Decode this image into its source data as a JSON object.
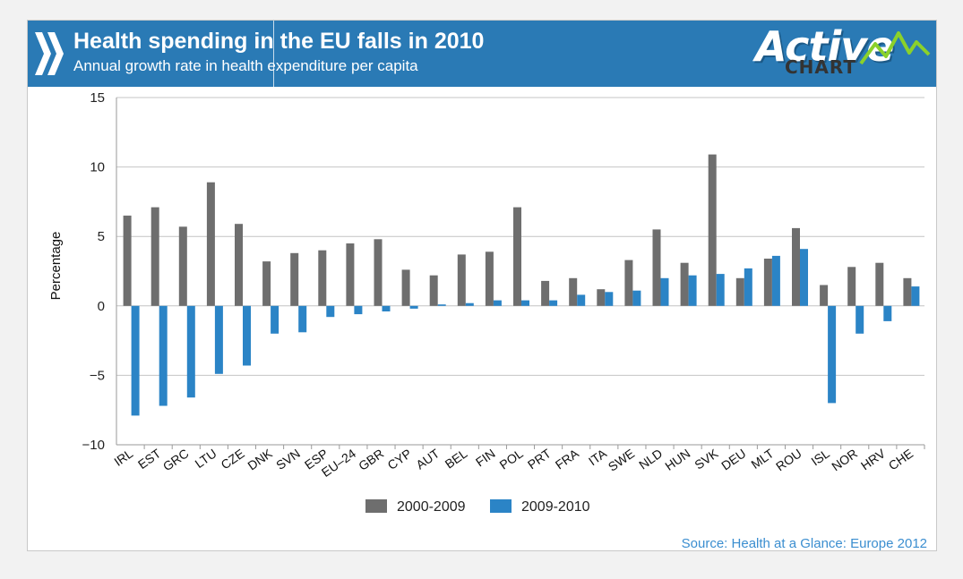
{
  "header": {
    "title": "Health spending in the EU falls in 2010",
    "subtitle": "Annual growth rate in health expenditure per capita",
    "logo_main": "Active",
    "logo_sub": "CHART"
  },
  "colors": {
    "header_bg": "#2a7ab5",
    "series_2000_2009": "#6e6e6e",
    "series_2009_2010": "#2b84c6",
    "source_text": "#3b8ed0"
  },
  "source": "Source: Health at a Glance: Europe 2012",
  "chart_data": {
    "type": "bar",
    "title": "Health spending in the EU falls in 2010",
    "subtitle": "Annual growth rate in health expenditure per capita",
    "ylabel": "Percentage",
    "xlabel": "",
    "ylim": [
      -10,
      15
    ],
    "yticks": [
      15,
      10,
      5,
      0,
      -5,
      -10
    ],
    "ytick_labels": [
      "15",
      "10",
      "5",
      "0",
      "−5",
      "−10"
    ],
    "grid": true,
    "legend_position": "bottom-center",
    "categories": [
      "IRL",
      "EST",
      "GRC",
      "LTU",
      "CZE",
      "DNK",
      "SVN",
      "ESP",
      "EU-24",
      "GBR",
      "CYP",
      "AUT",
      "BEL",
      "FIN",
      "POL",
      "PRT",
      "FRA",
      "ITA",
      "SWE",
      "NLD",
      "HUN",
      "SVK",
      "DEU",
      "MLT",
      "ROU",
      "ISL",
      "NOR",
      "HRV",
      "CHE"
    ],
    "category_labels": [
      "IRL",
      "EST",
      "GRC",
      "LTU",
      "CZE",
      "DNK",
      "SVN",
      "ESP",
      "EU–24",
      "GBR",
      "CYP",
      "AUT",
      "BEL",
      "FIN",
      "POL",
      "PRT",
      "FRA",
      "ITA",
      "SWE",
      "NLD",
      "HUN",
      "SVK",
      "DEU",
      "MLT",
      "ROU",
      "ISL",
      "NOR",
      "HRV",
      "CHE"
    ],
    "series": [
      {
        "name": "2000-2009",
        "color": "#6e6e6e",
        "values": [
          6.5,
          7.1,
          5.7,
          8.9,
          5.9,
          3.2,
          3.8,
          4.0,
          4.5,
          4.8,
          2.6,
          2.2,
          3.7,
          3.9,
          7.1,
          1.8,
          2.0,
          1.2,
          3.3,
          5.5,
          3.1,
          10.9,
          2.0,
          3.4,
          5.6,
          1.5,
          2.8,
          3.1,
          2.0
        ]
      },
      {
        "name": "2009-2010",
        "color": "#2b84c6",
        "values": [
          -7.9,
          -7.2,
          -6.6,
          -4.9,
          -4.3,
          -2.0,
          -1.9,
          -0.8,
          -0.6,
          -0.4,
          -0.2,
          0.1,
          0.2,
          0.4,
          0.4,
          0.4,
          0.8,
          1.0,
          1.1,
          2.0,
          2.2,
          2.3,
          2.7,
          3.6,
          4.1,
          -7.0,
          -2.0,
          -1.1,
          1.4
        ]
      }
    ]
  }
}
